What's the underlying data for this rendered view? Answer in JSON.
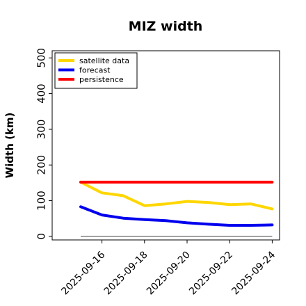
{
  "chart_data": {
    "type": "line",
    "title": "MIZ width",
    "xlabel": "",
    "ylabel": "Width (km)",
    "ylim": [
      -10,
      520
    ],
    "yticks": [
      0,
      100,
      200,
      300,
      400,
      500
    ],
    "x": [
      "2025-09-15",
      "2025-09-16",
      "2025-09-17",
      "2025-09-18",
      "2025-09-19",
      "2025-09-20",
      "2025-09-21",
      "2025-09-22",
      "2025-09-23",
      "2025-09-24"
    ],
    "xticks": [
      "2025-09-16",
      "2025-09-18",
      "2025-09-20",
      "2025-09-22",
      "2025-09-24"
    ],
    "highlighted_xtick": "2025-09-16",
    "highlight_color": "#2e8b2e",
    "legend_position": "upper left",
    "series": [
      {
        "name": "satellite data",
        "color": "#ffd700",
        "values": [
          152,
          122,
          114,
          86,
          91,
          98,
          95,
          89,
          91,
          77
        ]
      },
      {
        "name": "forecast",
        "color": "#0000ee",
        "values": [
          83,
          60,
          51,
          47,
          44,
          38,
          34,
          31,
          31,
          32
        ]
      },
      {
        "name": "persistence",
        "color": "#ff0000",
        "values": [
          152,
          152,
          152,
          152,
          152,
          152,
          152,
          152,
          152,
          152
        ]
      }
    ],
    "reference_line": {
      "y": 0,
      "color": "#808080"
    }
  }
}
